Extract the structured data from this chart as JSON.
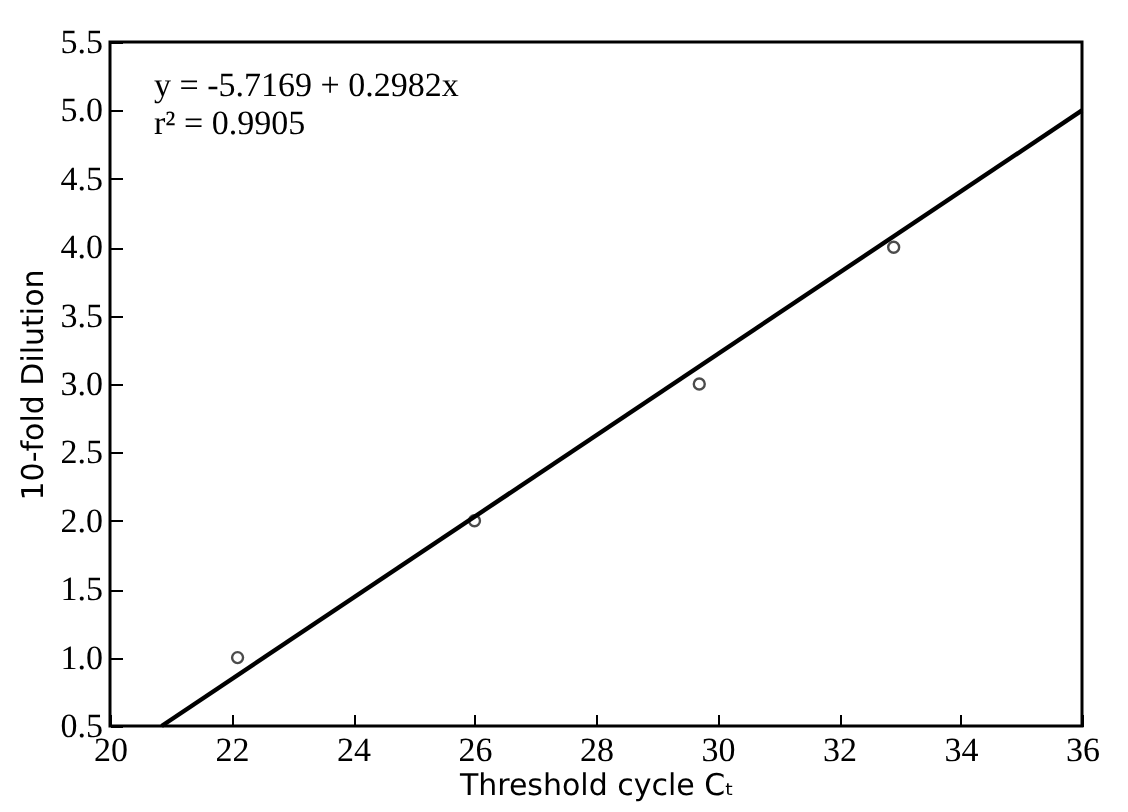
{
  "chart_data": {
    "type": "scatter",
    "xlabel": "Threshold cycle Cₜ",
    "ylabel": "10-fold Dilution",
    "annotations": [
      "y = -5.7169 + 0.2982x",
      "r² = 0.9905"
    ],
    "xlim": [
      20,
      36
    ],
    "xticks": [
      20,
      22,
      24,
      26,
      28,
      30,
      32,
      34,
      36
    ],
    "ylim": [
      0.5,
      5.5
    ],
    "yticks": [
      0.5,
      {
        "value": 1,
        "label": "1.0"
      },
      1.5,
      {
        "value": 2,
        "label": "2.0"
      },
      2.5,
      {
        "value": 3,
        "label": "3.0"
      },
      3.5,
      {
        "value": 4,
        "label": "4.0"
      },
      4.5,
      {
        "value": 5,
        "label": "5.0"
      },
      5.5
    ],
    "grid": false,
    "series": [
      {
        "type": "scatter",
        "color": "#000000",
        "marker": "circle",
        "x": [
          22.1,
          26.0,
          29.7,
          32.9
        ],
        "values": [
          1.0,
          2.0,
          3.0,
          4.0
        ]
      },
      {
        "type": "line",
        "color": "#000000",
        "marker": "none",
        "line_style": "solid",
        "x": [
          20.85,
          36
        ],
        "values": [
          0.5,
          5.0
        ]
      }
    ]
  }
}
